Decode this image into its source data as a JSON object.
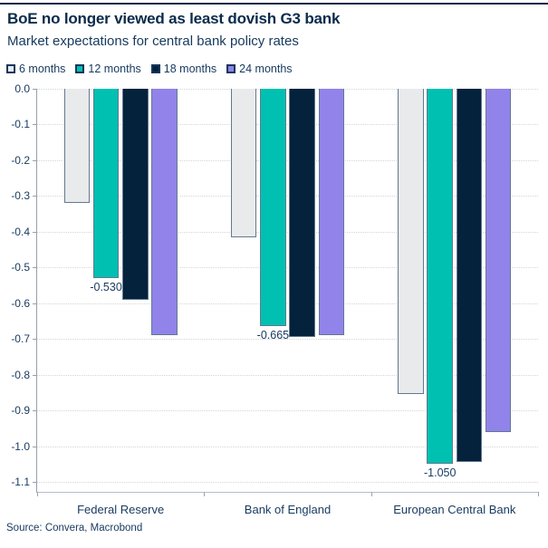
{
  "header": {
    "title": "BoE no longer viewed as least dovish G3 bank",
    "subtitle": "Market expectations for central bank policy rates"
  },
  "footer": {
    "source": "Source: Convera, Macrobond"
  },
  "colors": {
    "background": "#ffffff",
    "top_rule": "#0b2a4a",
    "text_title": "#0b2a4a",
    "text_body": "#16395f",
    "gridline": "#d5d5d5",
    "axis_left": "#95a0ae",
    "axis_bottom": "#b7bdc6",
    "legend_marker_border": "#14365c",
    "bar_border": "#64788f"
  },
  "chart_data": {
    "type": "bar",
    "title": "BoE no longer viewed as least dovish G3 bank",
    "subtitle": "Market expectations for central bank policy rates",
    "categories": [
      "Federal Reserve",
      "Bank of England",
      "European Central Bank"
    ],
    "series": [
      {
        "name": "6 months",
        "color": "#e9eaec",
        "values": [
          -0.32,
          -0.415,
          -0.855
        ]
      },
      {
        "name": "12 months",
        "color": "#00c1b1",
        "values": [
          -0.53,
          -0.665,
          -1.05
        ],
        "data_labels": [
          "-0.530",
          "-0.665",
          "-1.050"
        ]
      },
      {
        "name": "18 months",
        "color": "#04223c",
        "values": [
          -0.59,
          -0.695,
          -1.045
        ]
      },
      {
        "name": "24 months",
        "color": "#9183ea",
        "values": [
          -0.69,
          -0.69,
          -0.96
        ]
      }
    ],
    "ylim": [
      -1.1275,
      0
    ],
    "yticks": [
      "0.0",
      "-0.1",
      "-0.2",
      "-0.3",
      "-0.4",
      "-0.5",
      "-0.6",
      "-0.7",
      "-0.8",
      "-0.9",
      "-1.0",
      "-1.1"
    ],
    "grid": "horizontal-dotted",
    "legend_position": "top",
    "xlabel": "",
    "ylabel": ""
  }
}
